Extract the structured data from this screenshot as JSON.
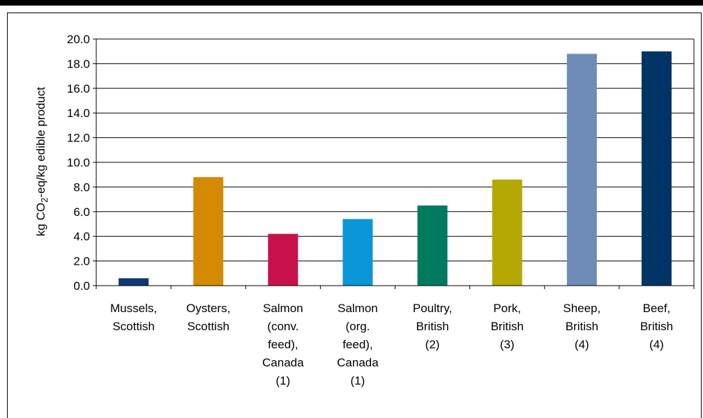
{
  "chart_data": {
    "type": "bar",
    "title": "",
    "xlabel": "",
    "ylabel": {
      "pre": "kg CO",
      "sub": "2",
      "post": "-eq/kg edible product"
    },
    "ylim": [
      0,
      20
    ],
    "ytick_step": 2,
    "yticks": [
      "0.0",
      "2.0",
      "4.0",
      "6.0",
      "8.0",
      "10.0",
      "12.0",
      "14.0",
      "16.0",
      "18.0",
      "20.0"
    ],
    "grid": true,
    "legend": "none",
    "categories": [
      [
        "Mussels,",
        "Scottish"
      ],
      [
        "Oysters,",
        "Scottish"
      ],
      [
        "Salmon",
        "(conv.",
        "feed),",
        "Canada",
        "(1)"
      ],
      [
        "Salmon",
        "(org.",
        "feed),",
        "Canada",
        "(1)"
      ],
      [
        "Poultry,",
        "British",
        "(2)"
      ],
      [
        "Pork,",
        "British",
        "(3)"
      ],
      [
        "Sheep,",
        "British",
        "(4)"
      ],
      [
        "Beef,",
        "British",
        "(4)"
      ]
    ],
    "values": [
      0.6,
      8.8,
      4.2,
      5.4,
      6.5,
      8.6,
      18.8,
      19.0
    ],
    "colors": [
      "#0f3a6e",
      "#d48a00",
      "#c8114b",
      "#0a96d8",
      "#007a5e",
      "#b5a800",
      "#6f8cb8",
      "#003366"
    ]
  }
}
